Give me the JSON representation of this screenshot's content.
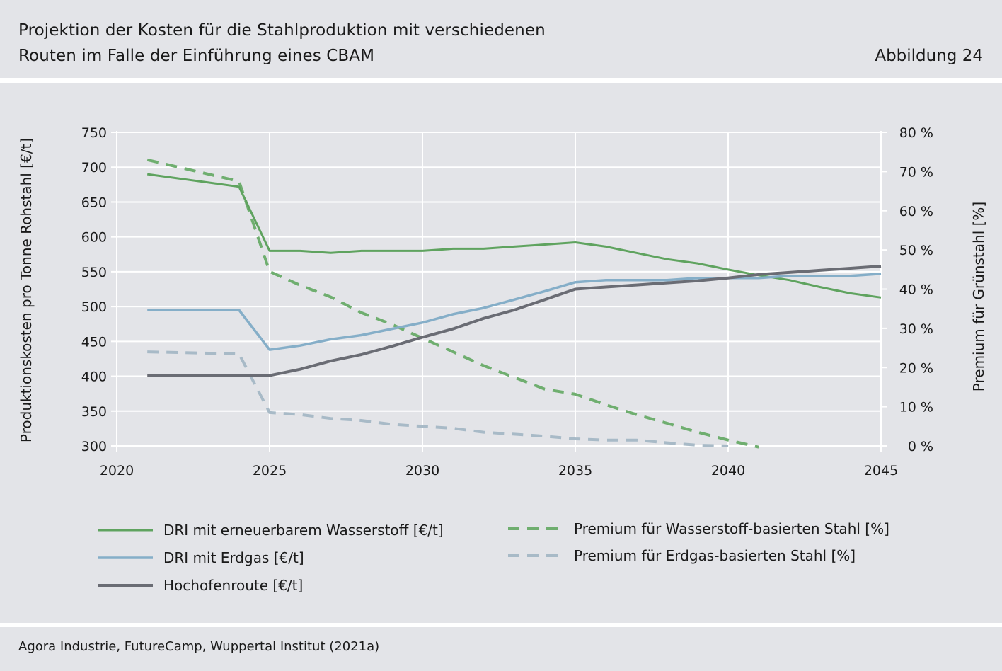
{
  "header": {
    "title_line1": "Projektion der Kosten für die Stahlproduktion mit verschiedenen",
    "title_line2": "Routen im Falle der Einführung eines CBAM",
    "figure_label": "Abbildung 24"
  },
  "footer": {
    "source": "Agora Industrie, FutureCamp, Wuppertal Institut (2021a)"
  },
  "chart_data": {
    "type": "line",
    "xlabel": "",
    "ylabel": "Produktionskosten pro Tonne Rohstahl [€/t]",
    "ylabel_right": "Premium für Grünstahl [%]",
    "xlim": [
      2020,
      2045
    ],
    "ylim": [
      300,
      750
    ],
    "ylim_right": [
      0,
      80
    ],
    "x_ticks": [
      "2020",
      "2025",
      "2030",
      "2035",
      "2040",
      "2045"
    ],
    "y_ticks": [
      "750",
      "700",
      "650",
      "600",
      "550",
      "500",
      "450",
      "400",
      "350",
      "300"
    ],
    "y_ticks_right": [
      "80 %",
      "70 %",
      "60 %",
      "50 %",
      "40 %",
      "30 %",
      "20 %",
      "10 %",
      "0 %"
    ],
    "grid": true,
    "legend_position": "bottom",
    "series": [
      {
        "name": "DRI mit erneuerbarem Wasserstoff [€/t]",
        "axis": "left",
        "color": "#5fa35f",
        "dash": false,
        "width": 3,
        "x": [
          2021,
          2022,
          2023,
          2024,
          2025,
          2026,
          2027,
          2028,
          2029,
          2030,
          2031,
          2032,
          2033,
          2034,
          2035,
          2036,
          2037,
          2038,
          2039,
          2040,
          2041,
          2042,
          2043,
          2044,
          2045
        ],
        "y": [
          690,
          684,
          678,
          672,
          580,
          580,
          577,
          580,
          580,
          580,
          583,
          583,
          586,
          589,
          592,
          586,
          577,
          568,
          562,
          553,
          545,
          538,
          528,
          519,
          513
        ]
      },
      {
        "name": "DRI mit Erdgas [€/t]",
        "axis": "left",
        "color": "#85aec8",
        "dash": false,
        "width": 3.5,
        "x": [
          2021,
          2022,
          2023,
          2024,
          2025,
          2026,
          2027,
          2028,
          2029,
          2030,
          2031,
          2032,
          2033,
          2034,
          2035,
          2036,
          2037,
          2038,
          2039,
          2040,
          2041,
          2042,
          2043,
          2044,
          2045
        ],
        "y": [
          495,
          495,
          495,
          495,
          438,
          444,
          453,
          459,
          468,
          477,
          489,
          498,
          510,
          522,
          535,
          538,
          538,
          538,
          541,
          541,
          541,
          544,
          544,
          544,
          547
        ]
      },
      {
        "name": "Hochofenroute [€/t]",
        "axis": "left",
        "color": "#6a6c74",
        "dash": false,
        "width": 4,
        "x": [
          2021,
          2022,
          2023,
          2024,
          2025,
          2026,
          2027,
          2028,
          2029,
          2030,
          2031,
          2032,
          2033,
          2034,
          2035,
          2036,
          2037,
          2038,
          2039,
          2040,
          2041,
          2042,
          2043,
          2044,
          2045
        ],
        "y": [
          401,
          401,
          401,
          401,
          401,
          410,
          422,
          431,
          443,
          456,
          468,
          483,
          495,
          510,
          525,
          528,
          531,
          534,
          537,
          541,
          546,
          549,
          552,
          555,
          558
        ]
      },
      {
        "name": "Premium für Wasserstoff-basierten Stahl [%]",
        "axis": "right",
        "color": "#6fae6f",
        "dash": true,
        "width": 4,
        "x": [
          2021,
          2024,
          2025,
          2026,
          2027,
          2028,
          2029,
          2030,
          2031,
          2032,
          2033,
          2034,
          2035,
          2036,
          2037,
          2038,
          2039,
          2040,
          2041
        ],
        "y": [
          73,
          67.5,
          44.5,
          41,
          38,
          34,
          31,
          27.5,
          24,
          20.5,
          17.5,
          14.5,
          13.2,
          10.5,
          8,
          5.8,
          3.5,
          1.5,
          -0.3
        ]
      },
      {
        "name": "Premium für Erdgas-basierten Stahl [%]",
        "axis": "right",
        "color": "#a8bac7",
        "dash": true,
        "width": 4,
        "x": [
          2021,
          2024,
          2025,
          2026,
          2027,
          2028,
          2029,
          2030,
          2031,
          2032,
          2033,
          2034,
          2035,
          2036,
          2037,
          2038,
          2039,
          2040
        ],
        "y": [
          24,
          23.5,
          8.5,
          8,
          7,
          6.5,
          5.5,
          5,
          4.5,
          3.5,
          3,
          2.5,
          1.8,
          1.5,
          1.5,
          0.8,
          0.2,
          0
        ]
      }
    ]
  }
}
